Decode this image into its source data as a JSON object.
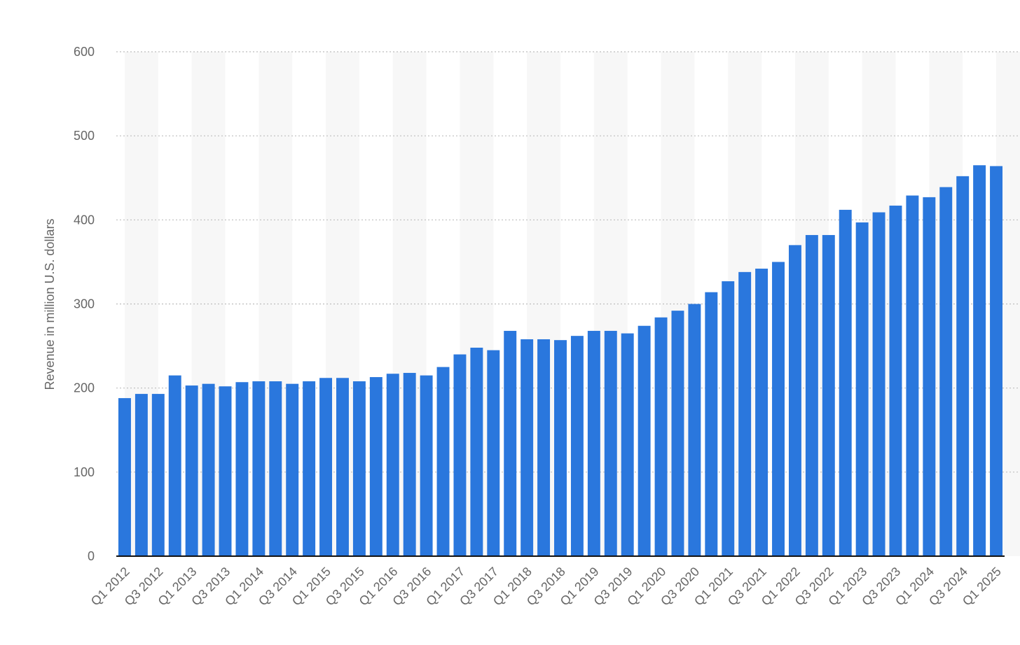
{
  "chart_data": {
    "type": "bar",
    "title": "",
    "xlabel": "",
    "ylabel": "Revenue in million U.S. dollars",
    "ylim": [
      0,
      600
    ],
    "yticks": [
      0,
      100,
      200,
      300,
      400,
      500,
      600
    ],
    "grid": true,
    "legend": "none",
    "bar_color": "#2a77dd",
    "categories": [
      "Q1 2012",
      "Q2 2012",
      "Q3 2012",
      "Q4 2012",
      "Q1 2013",
      "Q2 2013",
      "Q3 2013",
      "Q4 2013",
      "Q1 2014",
      "Q2 2014",
      "Q3 2014",
      "Q4 2014",
      "Q1 2015",
      "Q2 2015",
      "Q3 2015",
      "Q4 2015",
      "Q1 2016",
      "Q2 2016",
      "Q3 2016",
      "Q4 2016",
      "Q1 2017",
      "Q2 2017",
      "Q3 2017",
      "Q4 2017",
      "Q1 2018",
      "Q2 2018",
      "Q3 2018",
      "Q4 2018",
      "Q1 2019",
      "Q2 2019",
      "Q3 2019",
      "Q4 2019",
      "Q1 2020",
      "Q2 2020",
      "Q3 2020",
      "Q4 2020",
      "Q1 2021",
      "Q2 2021",
      "Q3 2021",
      "Q4 2021",
      "Q1 2022",
      "Q2 2022",
      "Q3 2022",
      "Q4 2022",
      "Q1 2023",
      "Q2 2023",
      "Q3 2023",
      "Q4 2023",
      "Q1 2024",
      "Q2 2024",
      "Q3 2024",
      "Q4 2024",
      "Q1 2025"
    ],
    "values": [
      188,
      193,
      193,
      215,
      203,
      205,
      202,
      207,
      208,
      208,
      205,
      208,
      212,
      212,
      208,
      213,
      217,
      218,
      215,
      225,
      240,
      248,
      245,
      268,
      258,
      258,
      257,
      262,
      268,
      268,
      265,
      274,
      284,
      292,
      300,
      314,
      327,
      338,
      342,
      350,
      370,
      382,
      382,
      412,
      397,
      409,
      417,
      429,
      427,
      439,
      452,
      465,
      464
    ],
    "x_tick_labels": [
      "Q1 2012",
      "Q3 2012",
      "Q1 2013",
      "Q3 2013",
      "Q1 2014",
      "Q3 2014",
      "Q1 2015",
      "Q3 2015",
      "Q1 2016",
      "Q3 2016",
      "Q1 2017",
      "Q3 2017",
      "Q1 2018",
      "Q3 2018",
      "Q1 2019",
      "Q3 2019",
      "Q1 2020",
      "Q3 2020",
      "Q1 2021",
      "Q3 2021",
      "Q1 2022",
      "Q3 2022",
      "Q1 2023",
      "Q3 2023",
      "Q1 2024",
      "Q3 2024",
      "Q1 2025"
    ]
  }
}
